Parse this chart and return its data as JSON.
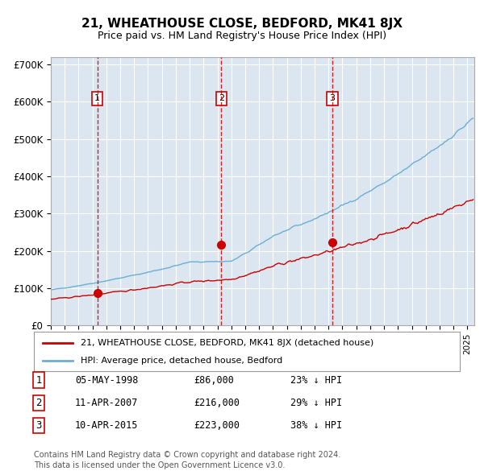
{
  "title": "21, WHEATHOUSE CLOSE, BEDFORD, MK41 8JX",
  "subtitle": "Price paid vs. HM Land Registry's House Price Index (HPI)",
  "plot_bg_color": "#dce6f0",
  "hpi_color": "#6baed6",
  "price_color": "#cc0000",
  "ylim_min": 0,
  "ylim_max": 720000,
  "yticks": [
    0,
    100000,
    200000,
    300000,
    400000,
    500000,
    600000,
    700000
  ],
  "ytick_labels": [
    "£0",
    "£100K",
    "£200K",
    "£300K",
    "£400K",
    "£500K",
    "£600K",
    "£700K"
  ],
  "xlim_start": 1995.0,
  "xlim_end": 2025.5,
  "sale_dates_decimal": [
    1998.35,
    2007.28,
    2015.27
  ],
  "sale_prices": [
    86000,
    216000,
    223000
  ],
  "sale_labels": [
    "1",
    "2",
    "3"
  ],
  "legend_line1": "21, WHEATHOUSE CLOSE, BEDFORD, MK41 8JX (detached house)",
  "legend_line2": "HPI: Average price, detached house, Bedford",
  "table_data": [
    [
      "1",
      "05-MAY-1998",
      "£86,000",
      "23% ↓ HPI"
    ],
    [
      "2",
      "11-APR-2007",
      "£216,000",
      "29% ↓ HPI"
    ],
    [
      "3",
      "10-APR-2015",
      "£223,000",
      "38% ↓ HPI"
    ]
  ],
  "footer": "Contains HM Land Registry data © Crown copyright and database right 2024.\nThis data is licensed under the Open Government Licence v3.0."
}
